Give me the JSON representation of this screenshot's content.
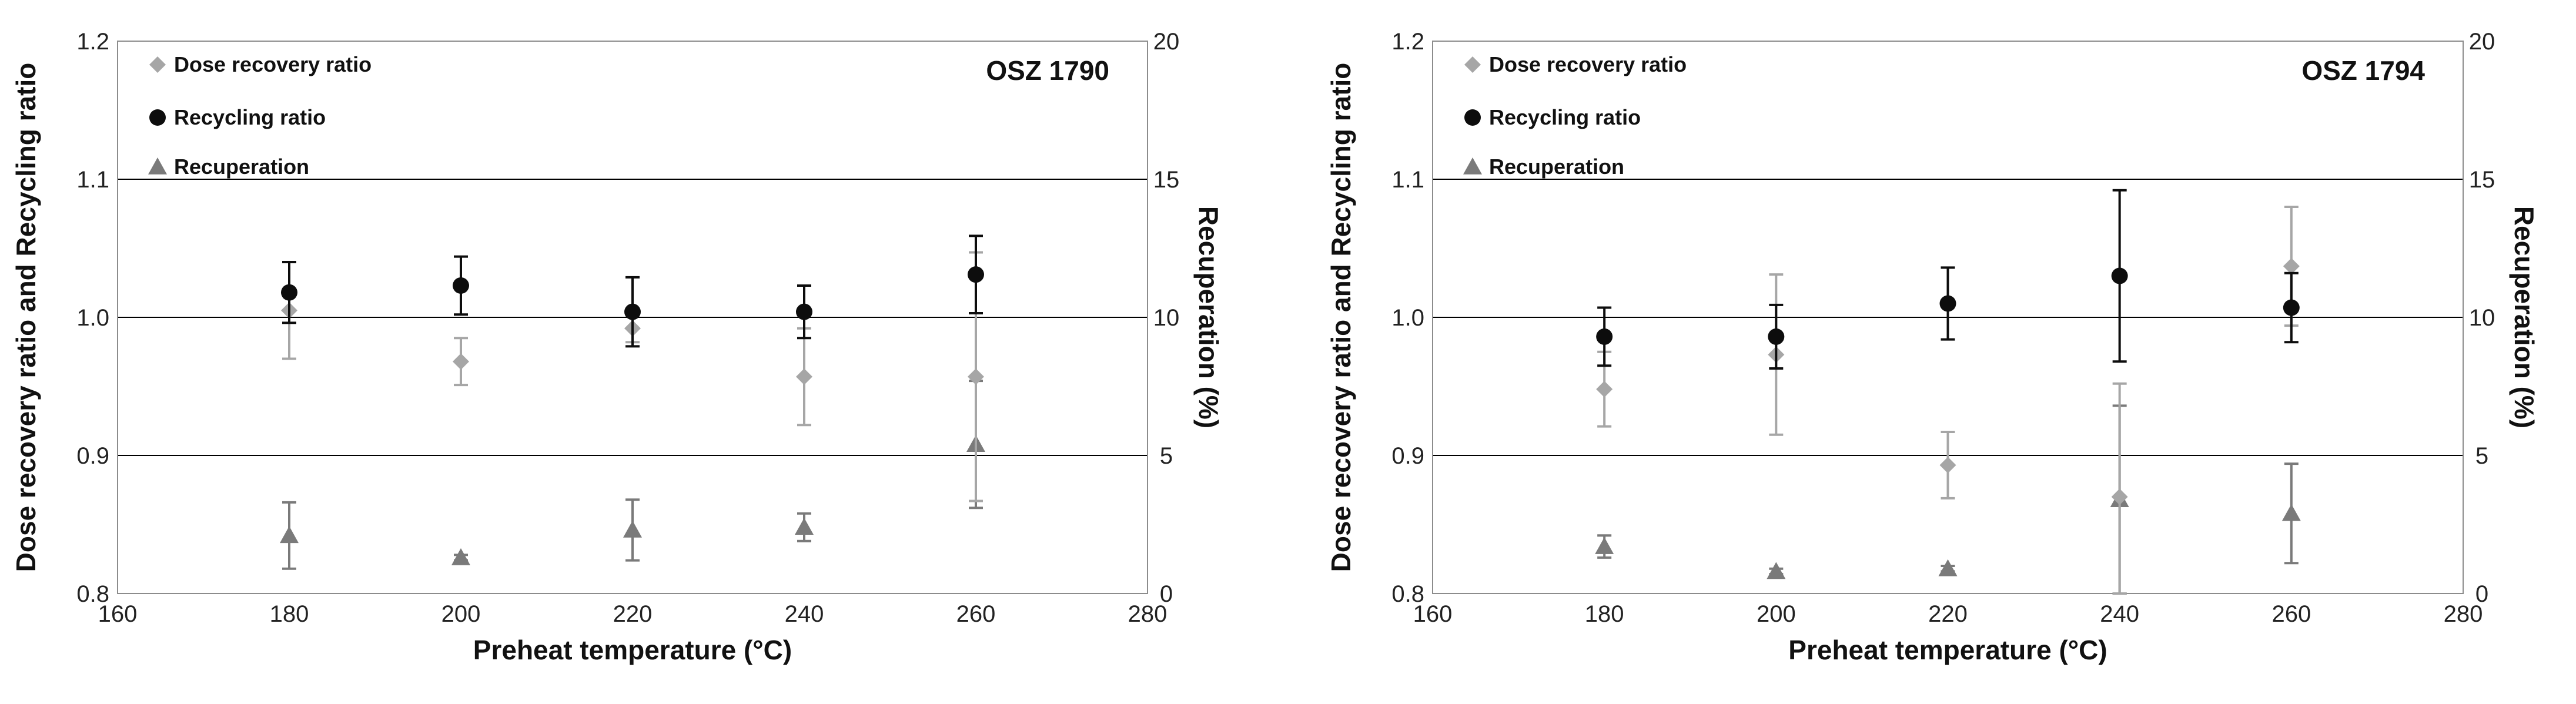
{
  "chart_data": [
    {
      "type": "scatter",
      "sample": "OSZ 1790",
      "xlabel": "Preheat temperature (°C)",
      "ylabel": "Dose recovery ratio and Recycling ratio",
      "y2label": "Recuperation (%)",
      "xlim": [
        160,
        280
      ],
      "ylim": [
        0.8,
        1.2
      ],
      "y2lim": [
        0,
        20
      ],
      "xticks": [
        "160",
        "180",
        "200",
        "220",
        "240",
        "260",
        "280"
      ],
      "yticks": [
        "0.8",
        "0.9",
        "1.0",
        "1.1",
        "1.2"
      ],
      "y2ticks": [
        "0",
        "5",
        "10",
        "15",
        "20"
      ],
      "grid": "horizontal",
      "legend": [
        {
          "label": "Dose recovery ratio",
          "marker": "diamond",
          "color": "#a6a6a6"
        },
        {
          "label": "Recycling ratio",
          "marker": "circle",
          "color": "#0d0d0d"
        },
        {
          "label": "Recuperation",
          "marker": "triangle",
          "color": "#7a7a7a"
        }
      ],
      "series": [
        {
          "name": "Dose recovery ratio",
          "axis": "left",
          "x": [
            180,
            200,
            220,
            240,
            260
          ],
          "y": [
            1.005,
            0.968,
            0.992,
            0.957,
            0.957
          ],
          "err": [
            0.035,
            0.017,
            0.01,
            0.035,
            0.09
          ]
        },
        {
          "name": "Recycling ratio",
          "axis": "left",
          "x": [
            180,
            200,
            220,
            240,
            260
          ],
          "y": [
            1.018,
            1.023,
            1.004,
            1.004,
            1.031
          ],
          "err": [
            0.022,
            0.021,
            0.025,
            0.019,
            0.028
          ]
        },
        {
          "name": "Recuperation",
          "axis": "right",
          "x": [
            180,
            200,
            220,
            240,
            260
          ],
          "y": [
            2.1,
            1.3,
            2.3,
            2.4,
            5.4
          ],
          "err": [
            1.2,
            0.1,
            1.1,
            0.5,
            2.3
          ]
        }
      ]
    },
    {
      "type": "scatter",
      "sample": "OSZ 1794",
      "xlabel": "Preheat temperature (°C)",
      "ylabel": "Dose recovery ratio and Recycling ratio",
      "y2label": "Recuperation (%)",
      "xlim": [
        160,
        280
      ],
      "ylim": [
        0.8,
        1.2
      ],
      "y2lim": [
        0,
        20
      ],
      "xticks": [
        "160",
        "180",
        "200",
        "220",
        "240",
        "260",
        "280"
      ],
      "yticks": [
        "0.8",
        "0.9",
        "1.0",
        "1.1",
        "1.2"
      ],
      "y2ticks": [
        "0",
        "5",
        "10",
        "15",
        "20"
      ],
      "grid": "horizontal",
      "legend": [
        {
          "label": "Dose recovery ratio",
          "marker": "diamond",
          "color": "#a6a6a6"
        },
        {
          "label": "Recycling ratio",
          "marker": "circle",
          "color": "#0d0d0d"
        },
        {
          "label": "Recuperation",
          "marker": "triangle",
          "color": "#7a7a7a"
        }
      ],
      "series": [
        {
          "name": "Dose recovery ratio",
          "axis": "left",
          "x": [
            180,
            200,
            220,
            240,
            260
          ],
          "y": [
            0.948,
            0.973,
            0.893,
            0.87,
            1.037
          ],
          "err": [
            0.027,
            0.058,
            0.024,
            0.082,
            0.043
          ]
        },
        {
          "name": "Recycling ratio",
          "axis": "left",
          "x": [
            180,
            200,
            220,
            240,
            260
          ],
          "y": [
            0.986,
            0.986,
            1.01,
            1.03,
            1.007
          ],
          "err": [
            0.021,
            0.023,
            0.026,
            0.062,
            0.025
          ]
        },
        {
          "name": "Recuperation",
          "axis": "right",
          "x": [
            180,
            200,
            220,
            240,
            260
          ],
          "y": [
            1.7,
            0.8,
            0.9,
            3.4,
            2.9
          ],
          "err": [
            0.4,
            0.1,
            0.1,
            3.4,
            1.8
          ]
        }
      ]
    }
  ]
}
